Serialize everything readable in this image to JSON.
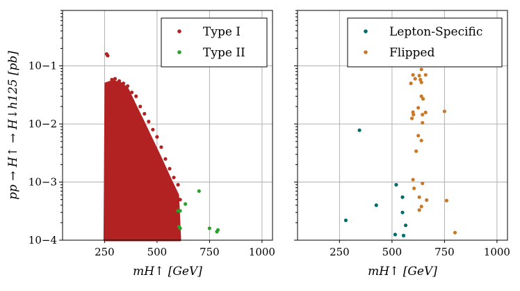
{
  "y_axis_label": "pp → H↑ → H↓h125 [pb]",
  "chart_data": [
    {
      "type": "scatter",
      "xlabel": "mH↑ [GeV]",
      "ylabel": "pp → H↑ → H↓h125 [pb]",
      "xlim": [
        50,
        1050
      ],
      "ylim": [
        0.0001,
        0.9
      ],
      "yscale": "log",
      "xticks": [
        250,
        500,
        750,
        1000
      ],
      "yticks": [
        0.0001,
        0.001,
        0.01,
        0.1
      ],
      "ytick_labels": [
        "10−4",
        "10−3",
        "10−2",
        "10−1"
      ],
      "grid": true,
      "legend_position": "top-right",
      "series": [
        {
          "name": "Type I",
          "color": "#b22222",
          "dense_region": {
            "description_points": [
              [
                250,
                0.0001
              ],
              [
                255,
                0.05
              ],
              [
                290,
                0.055
              ],
              [
                330,
                0.05
              ],
              [
                360,
                0.04
              ],
              [
                400,
                0.02
              ],
              [
                430,
                0.012
              ],
              [
                470,
                0.006
              ],
              [
                520,
                0.0025
              ],
              [
                560,
                0.0012
              ],
              [
                600,
                0.0006
              ],
              [
                610,
                0.0001
              ]
            ]
          },
          "points": [
            [
              260,
              0.16
            ],
            [
              265,
              0.15
            ],
            [
              270,
              0.05
            ],
            [
              285,
              0.058
            ],
            [
              300,
              0.06
            ],
            [
              320,
              0.055
            ],
            [
              340,
              0.05
            ],
            [
              360,
              0.045
            ],
            [
              380,
              0.035
            ],
            [
              400,
              0.03
            ],
            [
              420,
              0.02
            ],
            [
              440,
              0.015
            ],
            [
              460,
              0.011
            ],
            [
              480,
              0.008
            ],
            [
              500,
              0.006
            ],
            [
              520,
              0.004
            ],
            [
              540,
              0.0025
            ],
            [
              560,
              0.0017
            ],
            [
              580,
              0.0012
            ],
            [
              600,
              0.0009
            ],
            [
              610,
              0.0005
            ]
          ]
        },
        {
          "name": "Type II",
          "color": "#2ca02c",
          "points": [
            [
              600,
              0.00032
            ],
            [
              610,
              0.00032
            ],
            [
              605,
              0.00017
            ],
            [
              610,
              0.00016
            ],
            [
              635,
              0.00042
            ],
            [
              700,
              0.0007
            ],
            [
              750,
              0.00016
            ],
            [
              785,
              0.00014
            ],
            [
              790,
              0.00015
            ]
          ]
        }
      ]
    },
    {
      "type": "scatter",
      "xlabel": "mH↑ [GeV]",
      "xlim": [
        50,
        1050
      ],
      "ylim": [
        0.0001,
        0.9
      ],
      "yscale": "log",
      "xticks": [
        250,
        500,
        750,
        1000
      ],
      "grid": true,
      "legend_position": "top-right",
      "series": [
        {
          "name": "Lepton-Specific",
          "color": "#006d6d",
          "points": [
            [
              345,
              0.0078
            ],
            [
              280,
              0.00022
            ],
            [
              425,
              0.0004
            ],
            [
              520,
              0.0009
            ],
            [
              550,
              0.00055
            ],
            [
              550,
              0.0003
            ],
            [
              565,
              0.00018
            ],
            [
              515,
              0.000125
            ],
            [
              555,
              0.00012
            ]
          ]
        },
        {
          "name": "Flipped",
          "color": "#c87a2a",
          "points": [
            [
              640,
              0.087
            ],
            [
              600,
              0.07
            ],
            [
              610,
              0.06
            ],
            [
              630,
              0.068
            ],
            [
              660,
              0.07
            ],
            [
              590,
              0.05
            ],
            [
              635,
              0.058
            ],
            [
              640,
              0.052
            ],
            [
              640,
              0.03
            ],
            [
              648,
              0.027
            ],
            [
              625,
              0.019
            ],
            [
              600,
              0.016
            ],
            [
              602,
              0.0145
            ],
            [
              660,
              0.0158
            ],
            [
              750,
              0.0165
            ],
            [
              645,
              0.0145
            ],
            [
              595,
              0.0125
            ],
            [
              645,
              0.0105
            ],
            [
              625,
              0.0063
            ],
            [
              640,
              0.0052
            ],
            [
              615,
              0.0034
            ],
            [
              600,
              0.0011
            ],
            [
              645,
              0.00095
            ],
            [
              605,
              0.00078
            ],
            [
              630,
              0.00055
            ],
            [
              665,
              0.00049
            ],
            [
              640,
              0.00038
            ],
            [
              630,
              0.00033
            ],
            [
              760,
              0.00048
            ],
            [
              800,
              0.000135
            ]
          ]
        }
      ]
    }
  ]
}
